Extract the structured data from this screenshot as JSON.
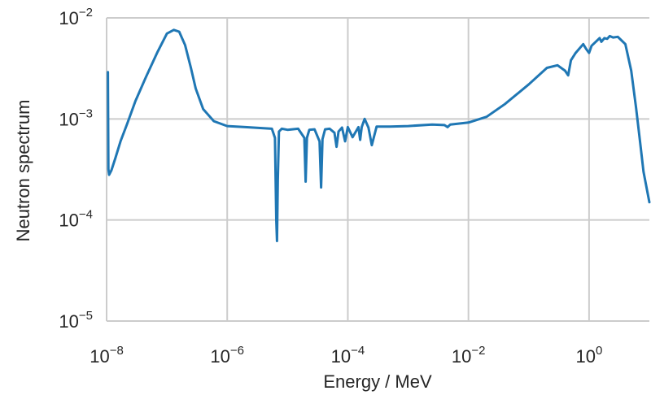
{
  "chart_data": {
    "type": "line",
    "title": "",
    "xlabel": "Energy / MeV",
    "ylabel": "Neutron spectrum",
    "xscale": "log",
    "yscale": "log",
    "xlim": [
      1e-08,
      10
    ],
    "ylim": [
      1e-05,
      0.01
    ],
    "grid": true,
    "legend": "none",
    "line_color": "#1f77b4",
    "x_ticks": [
      {
        "value": 1e-08,
        "base": "10",
        "exp": "−8"
      },
      {
        "value": 1e-06,
        "base": "10",
        "exp": "−6"
      },
      {
        "value": 0.0001,
        "base": "10",
        "exp": "−4"
      },
      {
        "value": 0.01,
        "base": "10",
        "exp": "−2"
      },
      {
        "value": 1,
        "base": "10",
        "exp": "0"
      }
    ],
    "y_ticks": [
      {
        "value": 0.01,
        "base": "10",
        "exp": "−2"
      },
      {
        "value": 0.001,
        "base": "10",
        "exp": "−3"
      },
      {
        "value": 0.0001,
        "base": "10",
        "exp": "−4"
      },
      {
        "value": 1e-05,
        "base": "10",
        "exp": "−5"
      }
    ],
    "series": [
      {
        "x": [
          1.05e-08,
          1.07e-08,
          1.1e-08,
          1.2e-08,
          1.4e-08,
          1.7e-08,
          2.2e-08,
          3e-08,
          4.5e-08,
          7e-08,
          1e-07,
          1.3e-07,
          1.6e-07,
          2e-07,
          2.5e-07,
          3e-07,
          4e-07,
          6e-07,
          1e-06,
          2e-06,
          4e-06,
          5.5e-06,
          6.2e-06,
          6.5e-06,
          6.7e-06,
          6.9e-06,
          7.2e-06,
          8e-06,
          1e-05,
          1.5e-05,
          1.9e-05,
          2e-05,
          2.1e-05,
          2.3e-05,
          2.8e-05,
          3.4e-05,
          3.6e-05,
          3.8e-05,
          4.2e-05,
          5e-05,
          6e-05,
          6.5e-05,
          7e-05,
          8e-05,
          9e-05,
          0.0001,
          0.00012,
          0.00015,
          0.00016,
          0.00017,
          0.00019,
          0.00022,
          0.00025,
          0.0003,
          0.0005,
          0.001,
          0.0025,
          0.004,
          0.0045,
          0.005,
          0.01,
          0.02,
          0.04,
          0.1,
          0.2,
          0.3,
          0.4,
          0.45,
          0.5,
          0.6,
          0.8,
          0.9,
          1.0,
          1.1,
          1.5,
          1.6,
          1.8,
          2.0,
          2.2,
          2.5,
          3,
          4,
          5,
          6,
          7,
          8,
          10
        ],
        "y": [
          0.0029,
          0.00032,
          0.00028,
          0.00031,
          0.00041,
          0.0006,
          0.0009,
          0.0015,
          0.0026,
          0.0046,
          0.007,
          0.0076,
          0.0073,
          0.0054,
          0.0032,
          0.002,
          0.00125,
          0.00095,
          0.00085,
          0.00083,
          0.00081,
          0.0008,
          0.00065,
          0.0001,
          6.2e-05,
          0.00025,
          0.00075,
          0.0008,
          0.00078,
          0.0008,
          0.00065,
          0.00024,
          0.00065,
          0.00078,
          0.00079,
          0.0006,
          0.00021,
          0.00063,
          0.00079,
          0.0008,
          0.00073,
          0.00053,
          0.00075,
          0.00082,
          0.0006,
          0.00083,
          0.00066,
          0.00083,
          0.00062,
          0.00083,
          0.001,
          0.00082,
          0.00055,
          0.00084,
          0.00084,
          0.00085,
          0.00088,
          0.00087,
          0.00083,
          0.00088,
          0.00092,
          0.00105,
          0.0014,
          0.0022,
          0.0032,
          0.0034,
          0.003,
          0.0027,
          0.0038,
          0.0045,
          0.0055,
          0.0049,
          0.0045,
          0.0053,
          0.0063,
          0.0058,
          0.0063,
          0.0062,
          0.0066,
          0.0064,
          0.0065,
          0.0055,
          0.003,
          0.0013,
          0.0006,
          0.0003,
          0.00015
        ]
      }
    ]
  }
}
